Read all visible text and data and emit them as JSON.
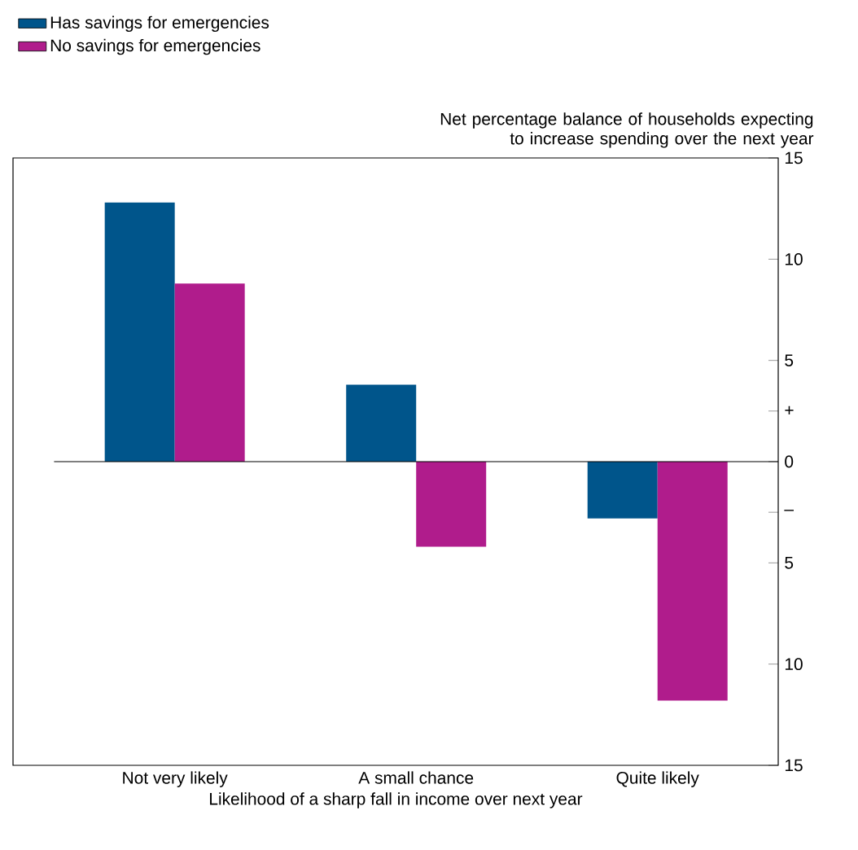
{
  "chart_data": {
    "type": "bar",
    "xlabel": "Likelihood of a sharp fall in income over next year",
    "ylabel": "Net percentage balance of households expecting to increase spending over the next year",
    "categories": [
      "Not very likely",
      "A small chance",
      "Quite likely"
    ],
    "series": [
      {
        "name": "Has savings for emergencies",
        "color": "#00558b",
        "values": [
          12.8,
          3.8,
          -2.8
        ]
      },
      {
        "name": "No savings for emergencies",
        "color": "#b01c8c",
        "values": [
          8.8,
          -4.2,
          -11.8
        ]
      }
    ],
    "ylim": [
      -15,
      15
    ],
    "yticks": [
      15,
      10,
      5,
      {
        "value": 2.5,
        "label": "+"
      },
      0,
      {
        "value": -2.5,
        "label": "–"
      },
      {
        "value": -5,
        "label": "5"
      },
      {
        "value": -10,
        "label": "10"
      },
      {
        "value": -15,
        "label": "15"
      }
    ],
    "legend": "top left"
  }
}
